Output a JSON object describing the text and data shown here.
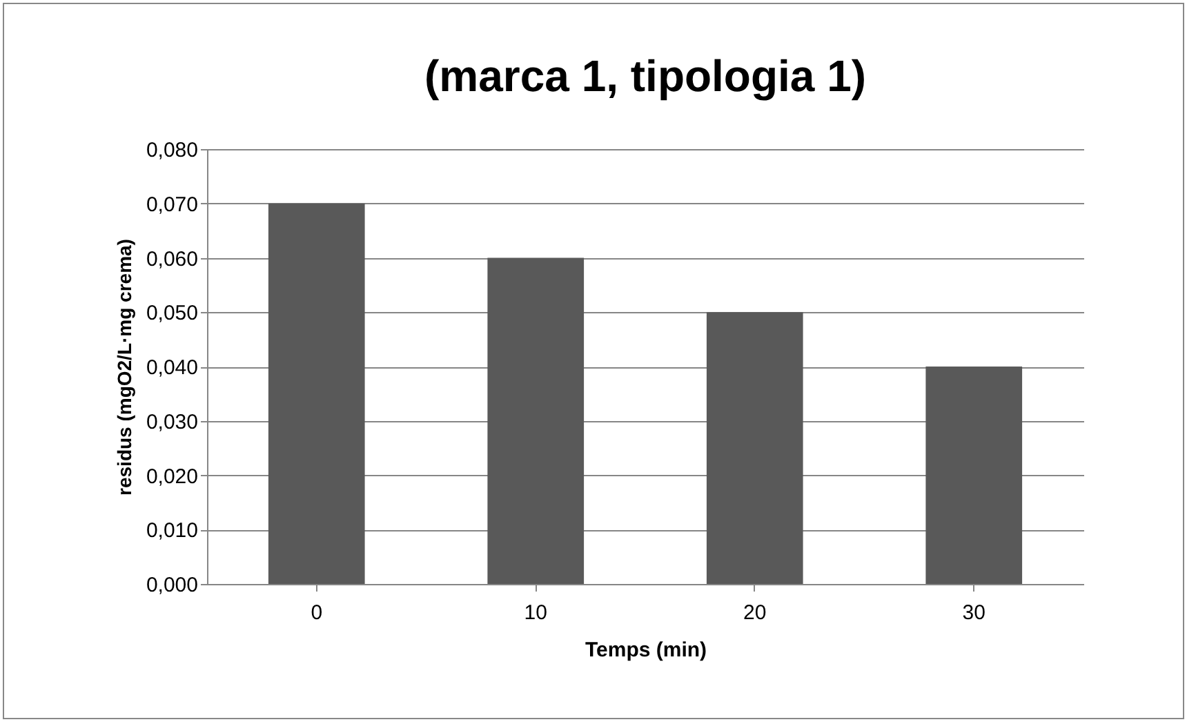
{
  "chart_data": {
    "type": "bar",
    "title": "(marca 1, tipologia 1)",
    "xlabel": "Temps (min)",
    "ylabel": "residus (mgO2/L·mg crema)",
    "categories": [
      "0",
      "10",
      "20",
      "30"
    ],
    "values": [
      0.07,
      0.06,
      0.05,
      0.04
    ],
    "color": "#595959",
    "ylim": [
      0,
      0.08
    ],
    "yticks": [
      {
        "value": 0,
        "label": "0,000"
      },
      {
        "value": 0.01,
        "label": "0,010"
      },
      {
        "value": 0.02,
        "label": "0,020"
      },
      {
        "value": 0.03,
        "label": "0,030"
      },
      {
        "value": 0.04,
        "label": "0,040"
      },
      {
        "value": 0.05,
        "label": "0,050"
      },
      {
        "value": 0.06,
        "label": "0,060"
      },
      {
        "value": 0.07,
        "label": "0,070"
      },
      {
        "value": 0.08,
        "label": "0,080"
      }
    ],
    "grid": "y"
  }
}
